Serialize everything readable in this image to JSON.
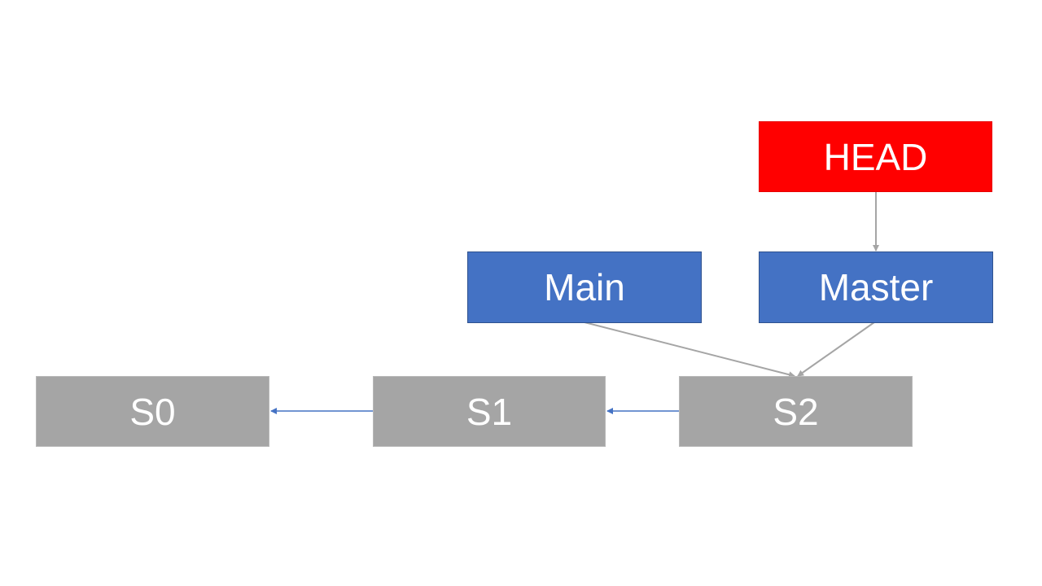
{
  "nodes": {
    "head": {
      "label": "HEAD",
      "color": "#ff0000"
    },
    "main": {
      "label": "Main",
      "color": "#4472c4"
    },
    "master": {
      "label": "Master",
      "color": "#4472c4"
    },
    "s0": {
      "label": "S0",
      "color": "#a5a5a5"
    },
    "s1": {
      "label": "S1",
      "color": "#a5a5a5"
    },
    "s2": {
      "label": "S2",
      "color": "#a5a5a5"
    }
  },
  "edges": [
    {
      "from": "head",
      "to": "master",
      "color": "#a5a5a5"
    },
    {
      "from": "main",
      "to": "s2",
      "color": "#a5a5a5"
    },
    {
      "from": "master",
      "to": "s2",
      "color": "#a5a5a5"
    },
    {
      "from": "s2",
      "to": "s1",
      "color": "#4472c4"
    },
    {
      "from": "s1",
      "to": "s0",
      "color": "#4472c4"
    }
  ]
}
